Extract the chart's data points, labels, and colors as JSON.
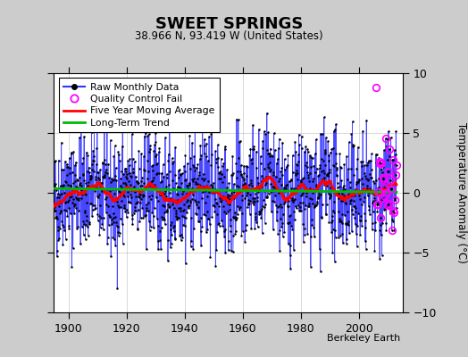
{
  "title": "SWEET SPRINGS",
  "subtitle": "38.966 N, 93.419 W (United States)",
  "ylabel": "Temperature Anomaly (°C)",
  "credit": "Berkeley Earth",
  "xlim": [
    1895,
    2015
  ],
  "ylim": [
    -10,
    10
  ],
  "xticks": [
    1900,
    1920,
    1940,
    1960,
    1980,
    2000
  ],
  "yticks": [
    -10,
    -5,
    0,
    5,
    10
  ],
  "raw_color": "#3333FF",
  "raw_marker_color": "#000000",
  "moving_avg_color": "#FF0000",
  "trend_color": "#00BB00",
  "qc_fail_color": "#FF00FF",
  "background_color": "#FFFFFF",
  "outer_background": "#CCCCCC",
  "seed": 42,
  "n_months": 1416,
  "start_year": 1895.0,
  "qc_fail_start_year": 2006,
  "n_qc_fail": 28
}
